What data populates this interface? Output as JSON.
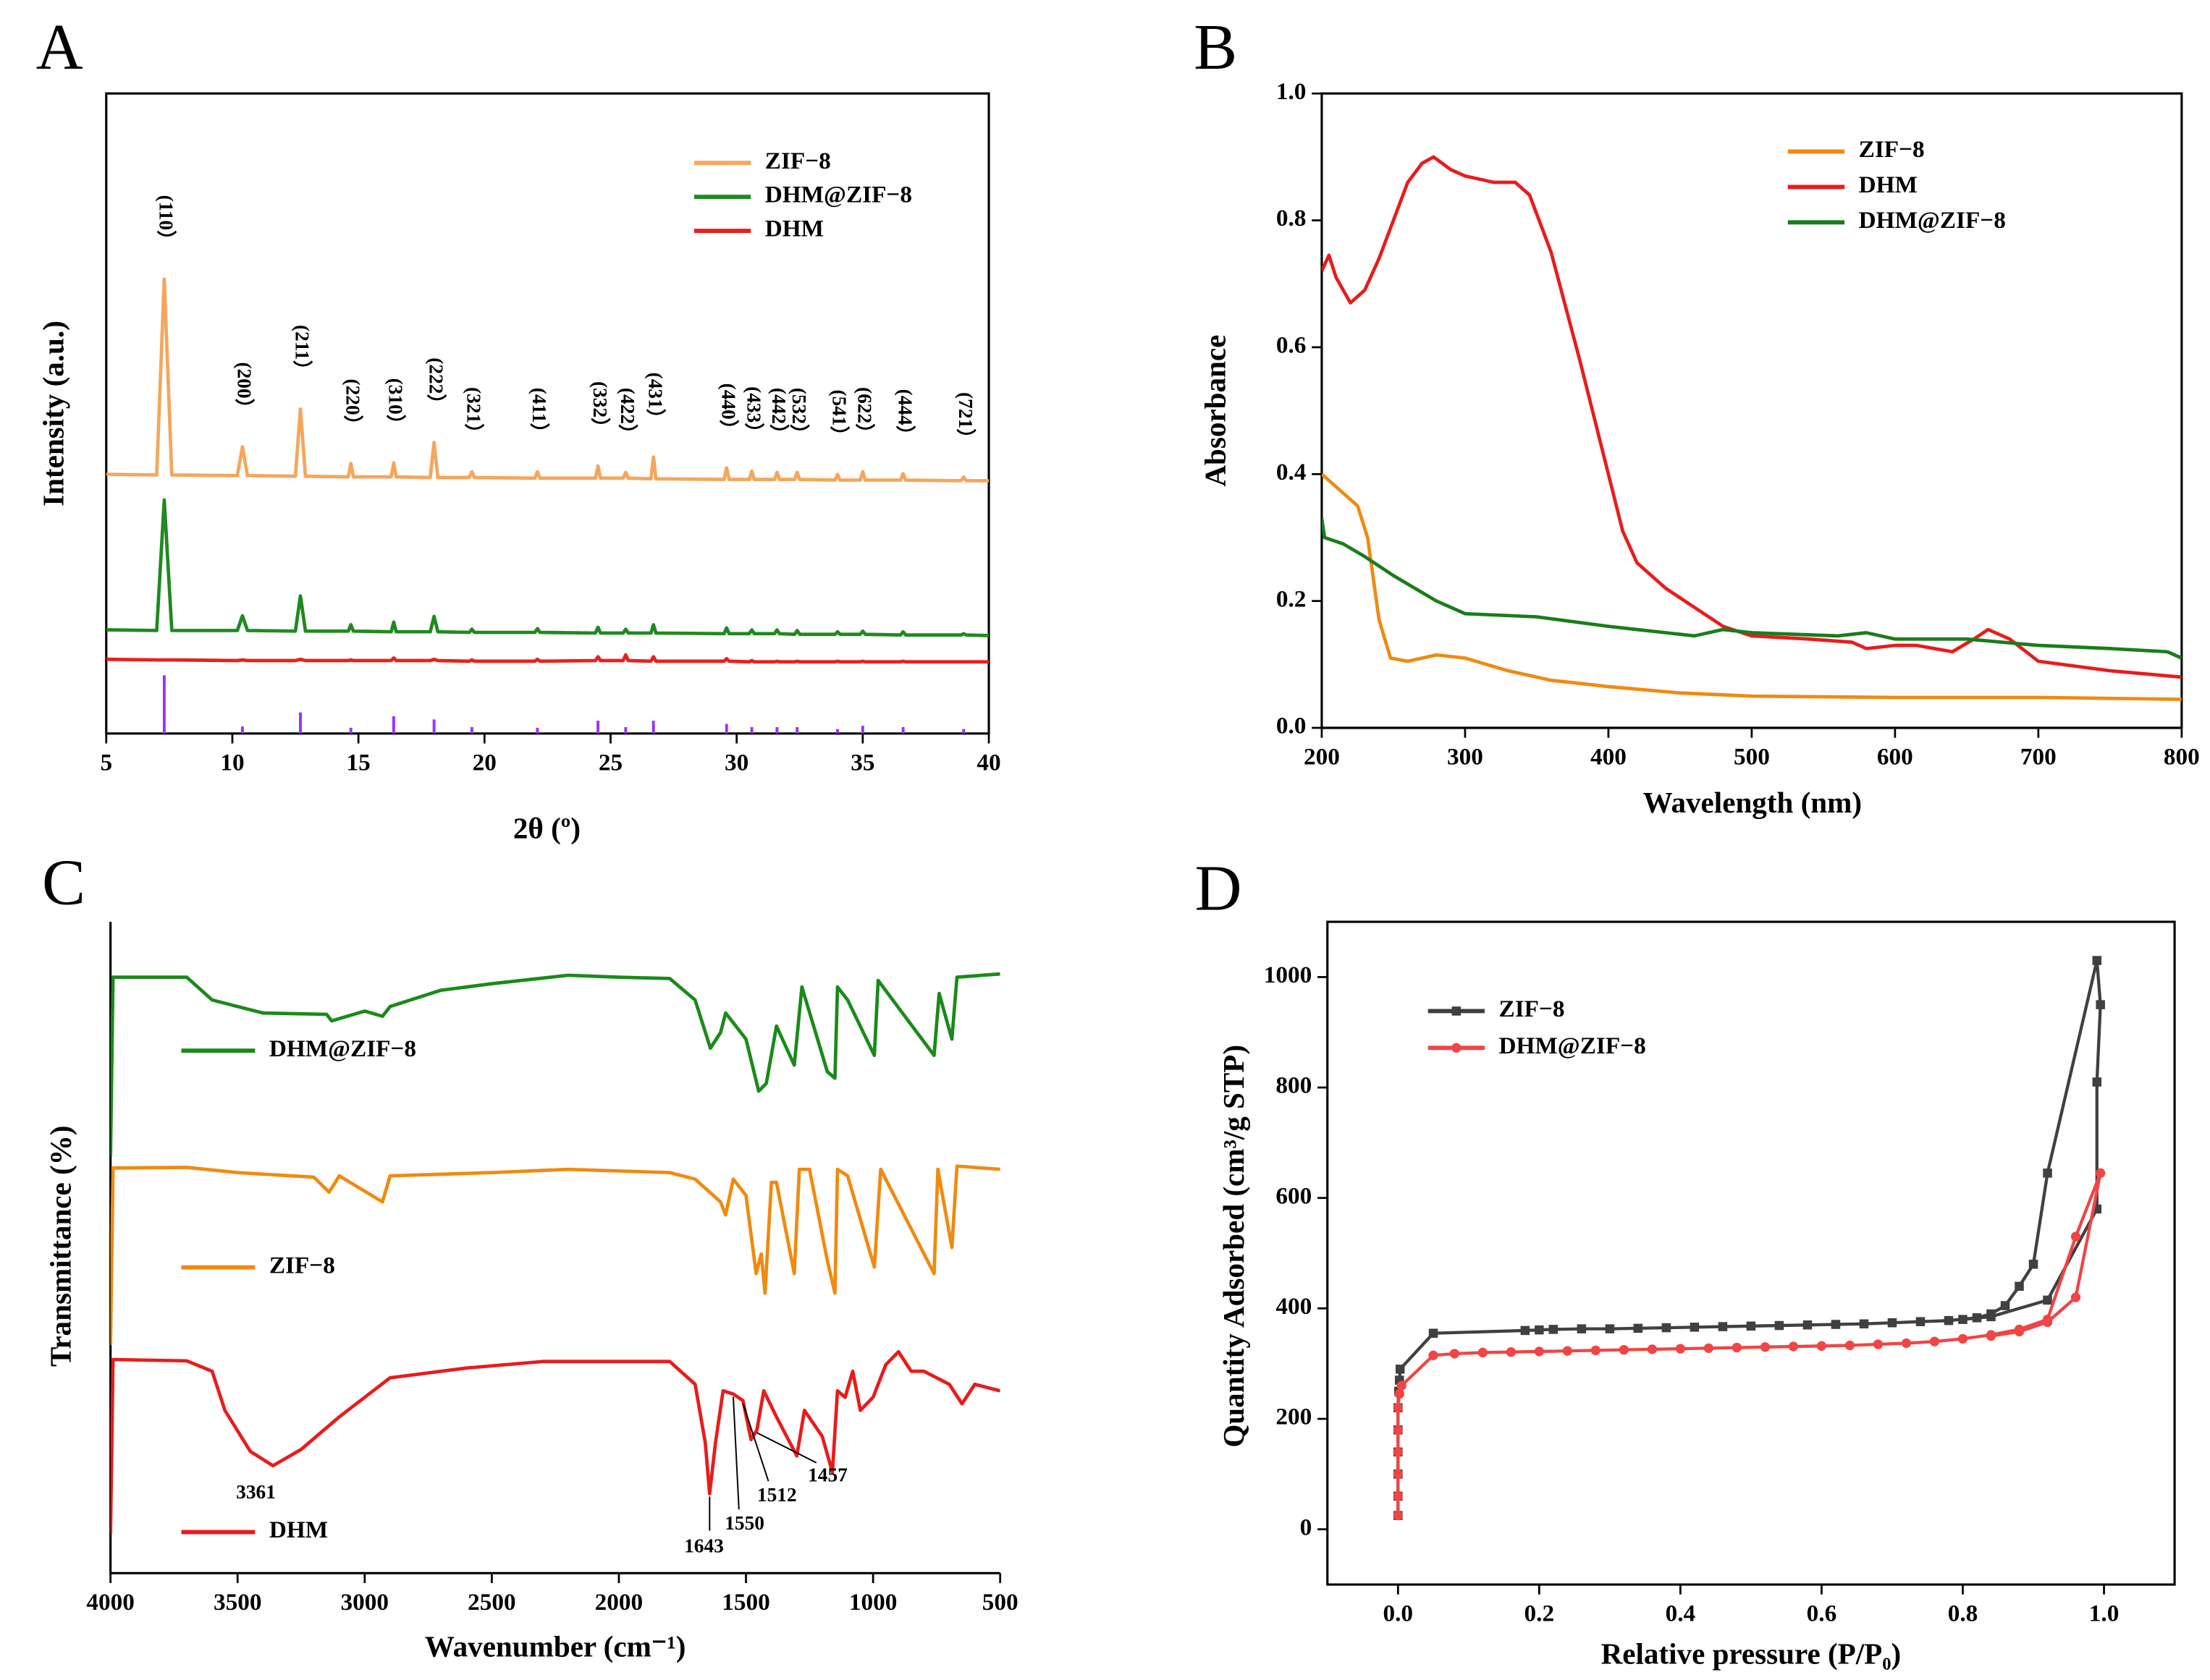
{
  "chart_data": [
    {
      "panel": "A",
      "type": "line",
      "xlabel": "2θ (º)",
      "ylabel": "Intensity (a.u.)",
      "xlim": [
        5,
        40
      ],
      "ylim": [
        0,
        100
      ],
      "xticks": [
        5,
        10,
        15,
        20,
        25,
        30,
        35,
        40
      ],
      "legend": "upper right",
      "x": [
        5,
        7.0,
        7.3,
        7.6,
        10.2,
        10.4,
        10.6,
        12.5,
        12.7,
        12.9,
        14.6,
        14.7,
        14.8,
        16.3,
        16.4,
        16.5,
        17.85,
        18.0,
        18.15,
        19.4,
        19.5,
        19.6,
        22.0,
        22.1,
        22.2,
        24.4,
        24.5,
        24.6,
        25.5,
        25.6,
        25.7,
        26.6,
        26.7,
        26.8,
        29.5,
        29.6,
        29.7,
        30.5,
        30.6,
        30.7,
        31.5,
        31.6,
        31.7,
        32.3,
        32.4,
        32.5,
        33.9,
        34.0,
        34.1,
        34.9,
        35.0,
        35.1,
        36.5,
        36.6,
        36.7,
        38.9,
        39.0,
        39.1,
        40
      ],
      "series": [
        {
          "name": "ZIF−8",
          "color": "#f5a65b",
          "values": [
            40.5,
            40.4,
            71,
            40.4,
            40.3,
            44.8,
            40.3,
            40.2,
            50.7,
            40.2,
            40.1,
            42.2,
            40.1,
            40.1,
            42.3,
            40.1,
            40.0,
            45.5,
            40.0,
            40.0,
            40.9,
            40.0,
            39.9,
            40.9,
            39.9,
            39.9,
            41.8,
            39.9,
            39.9,
            40.8,
            39.9,
            39.8,
            43.2,
            39.8,
            39.7,
            41.5,
            39.7,
            39.7,
            41.0,
            39.7,
            39.7,
            40.8,
            39.7,
            39.7,
            40.8,
            39.7,
            39.6,
            40.5,
            39.6,
            39.6,
            40.9,
            39.6,
            39.6,
            40.6,
            39.6,
            39.5,
            40.1,
            39.5,
            39.5
          ]
        },
        {
          "name": "DHM@ZIF−8",
          "color": "#1f8a1f",
          "values": [
            16.2,
            16.1,
            36.5,
            16.1,
            16.1,
            18.4,
            16.1,
            16.0,
            21.5,
            16.0,
            16.0,
            17.0,
            16.0,
            15.9,
            17.4,
            15.9,
            15.9,
            18.3,
            15.9,
            15.8,
            16.3,
            15.8,
            15.8,
            16.4,
            15.8,
            15.7,
            16.6,
            15.7,
            15.7,
            16.3,
            15.7,
            15.7,
            17.0,
            15.7,
            15.6,
            16.5,
            15.6,
            15.6,
            16.2,
            15.6,
            15.6,
            16.2,
            15.6,
            15.5,
            16.1,
            15.5,
            15.5,
            15.9,
            15.5,
            15.5,
            16.0,
            15.5,
            15.4,
            15.9,
            15.4,
            15.4,
            15.6,
            15.4,
            15.3
          ]
        },
        {
          "name": "DHM",
          "color": "#e8201e",
          "values": [
            11.6,
            11.5,
            11.5,
            11.5,
            11.4,
            11.5,
            11.4,
            11.4,
            11.6,
            11.4,
            11.4,
            11.5,
            11.4,
            11.4,
            11.8,
            11.4,
            11.4,
            11.6,
            11.4,
            11.3,
            11.5,
            11.3,
            11.3,
            11.6,
            11.3,
            11.4,
            12.0,
            11.4,
            11.4,
            12.3,
            11.4,
            11.3,
            12.0,
            11.3,
            11.3,
            11.7,
            11.3,
            11.2,
            11.4,
            11.2,
            11.2,
            11.3,
            11.2,
            11.2,
            11.3,
            11.2,
            11.2,
            11.3,
            11.2,
            11.2,
            11.3,
            11.2,
            11.2,
            11.3,
            11.2,
            11.2,
            11.2,
            11.2,
            11.2
          ]
        }
      ],
      "reference": {
        "color": "#9b30ff",
        "x": [
          7.3,
          10.4,
          12.7,
          14.7,
          16.4,
          18.0,
          19.5,
          22.1,
          24.5,
          25.6,
          26.7,
          29.6,
          30.6,
          31.6,
          32.4,
          34.0,
          35.0,
          36.6,
          39.0
        ],
        "values": [
          9.1,
          1.1,
          3.3,
          0.9,
          2.7,
          2.2,
          1.0,
          0.9,
          2.0,
          1.0,
          2.0,
          1.5,
          1.0,
          1.0,
          1.0,
          0.7,
          1.2,
          1.0,
          0.7
        ]
      },
      "peak_labels": [
        {
          "label": "(110）",
          "x": 7.3
        },
        {
          "label": "(200）",
          "x": 10.4
        },
        {
          "label": "(211）",
          "x": 12.7
        },
        {
          "label": "(220）",
          "x": 14.7
        },
        {
          "label": "(310）",
          "x": 16.4
        },
        {
          "label": "(222）",
          "x": 18.0
        },
        {
          "label": "(321）",
          "x": 19.5
        },
        {
          "label": "(411）",
          "x": 22.1
        },
        {
          "label": "(332）",
          "x": 24.5
        },
        {
          "label": "(422）",
          "x": 25.6
        },
        {
          "label": "(431）",
          "x": 26.7
        },
        {
          "label": "(440）",
          "x": 29.6
        },
        {
          "label": "(433）",
          "x": 30.6
        },
        {
          "label": "(442）",
          "x": 31.6
        },
        {
          "label": "(532）",
          "x": 32.4
        },
        {
          "label": "(541）",
          "x": 34.0
        },
        {
          "label": "(622）",
          "x": 35.0
        },
        {
          "label": "(444）",
          "x": 36.6
        },
        {
          "label": "(721）",
          "x": 39.0
        }
      ]
    },
    {
      "panel": "B",
      "type": "line",
      "xlabel": "Wavelength (nm)",
      "ylabel": "Absorbance",
      "xlim": [
        200,
        800
      ],
      "ylim": [
        0,
        1
      ],
      "xticks": [
        200,
        300,
        400,
        500,
        600,
        700,
        800
      ],
      "yticks": [
        {
          "value": 0,
          "label": "0.0"
        },
        0.2,
        0.4,
        0.6,
        0.8,
        {
          "value": 1,
          "label": "1.0"
        }
      ],
      "legend": "upper right",
      "series": [
        {
          "name": "ZIF−8",
          "color": "#f08a10",
          "x": [
            200,
            210,
            225,
            232,
            240,
            248,
            260,
            280,
            300,
            330,
            360,
            400,
            450,
            500,
            600,
            700,
            800
          ],
          "values": [
            0.4,
            0.38,
            0.35,
            0.3,
            0.17,
            0.11,
            0.105,
            0.115,
            0.11,
            0.09,
            0.075,
            0.065,
            0.055,
            0.05,
            0.048,
            0.048,
            0.045
          ]
        },
        {
          "name": "DHM",
          "color": "#e81c1c",
          "x": [
            200,
            205,
            210,
            220,
            230,
            240,
            250,
            260,
            270,
            278,
            290,
            300,
            320,
            335,
            345,
            360,
            380,
            400,
            410,
            420,
            440,
            460,
            480,
            500,
            540,
            570,
            580,
            600,
            615,
            640,
            655,
            665,
            680,
            700,
            750,
            800
          ],
          "values": [
            0.72,
            0.745,
            0.71,
            0.67,
            0.69,
            0.74,
            0.8,
            0.86,
            0.89,
            0.9,
            0.88,
            0.87,
            0.86,
            0.86,
            0.84,
            0.75,
            0.58,
            0.4,
            0.31,
            0.26,
            0.22,
            0.19,
            0.16,
            0.145,
            0.14,
            0.135,
            0.125,
            0.13,
            0.13,
            0.12,
            0.14,
            0.155,
            0.14,
            0.105,
            0.09,
            0.08
          ]
        },
        {
          "name": "DHM@ZIF−8",
          "color": "#1a7d1a",
          "x": [
            200,
            202,
            215,
            230,
            250,
            280,
            300,
            350,
            400,
            420,
            460,
            480,
            500,
            560,
            580,
            600,
            650,
            700,
            750,
            790,
            800
          ],
          "values": [
            0.33,
            0.3,
            0.29,
            0.27,
            0.24,
            0.2,
            0.18,
            0.175,
            0.16,
            0.155,
            0.145,
            0.155,
            0.15,
            0.145,
            0.15,
            0.14,
            0.14,
            0.13,
            0.125,
            0.12,
            0.11
          ]
        }
      ]
    },
    {
      "panel": "C",
      "type": "line",
      "xlabel": "Wavenumber (cm⁻¹)",
      "ylabel": "Transmittance (%)",
      "xlim": [
        4000,
        500
      ],
      "ylim": [
        0,
        100
      ],
      "xticks": [
        4000,
        3500,
        3000,
        2500,
        2000,
        1500,
        1000,
        500
      ],
      "legend": "beside",
      "series": [
        {
          "name": "DHM@ZIF−8",
          "color": "#1a8a1a",
          "x": [
            4000,
            3990,
            3700,
            3600,
            3400,
            3150,
            3130,
            3000,
            2930,
            2900,
            2700,
            2500,
            2200,
            2000,
            1800,
            1700,
            1640,
            1600,
            1580,
            1500,
            1450,
            1420,
            1380,
            1310,
            1280,
            1180,
            1150,
            1140,
            1100,
            995,
            980,
            760,
            740,
            690,
            670,
            500
          ],
          "values": [
            64,
            91.5,
            91.5,
            88,
            86,
            85.8,
            84.8,
            86.3,
            85.5,
            87,
            89.5,
            90.5,
            91.8,
            91.5,
            91.3,
            88,
            80.6,
            83,
            86,
            82,
            74,
            75.2,
            84,
            78,
            90,
            77,
            76,
            90,
            88,
            79.5,
            91,
            79.5,
            89,
            82,
            91.5,
            92
          ]
        },
        {
          "name": "ZIF−8",
          "color": "#f08a10",
          "x": [
            4000,
            3990,
            3700,
            3500,
            3200,
            3140,
            3100,
            2930,
            2900,
            2500,
            2200,
            1800,
            1700,
            1600,
            1580,
            1550,
            1500,
            1460,
            1440,
            1425,
            1400,
            1380,
            1310,
            1290,
            1250,
            1180,
            1150,
            1140,
            1100,
            995,
            970,
            760,
            745,
            690,
            670,
            500
          ],
          "values": [
            35,
            62.2,
            62.3,
            61.5,
            60.8,
            58.5,
            61,
            57,
            61,
            61.5,
            62,
            61.5,
            60.5,
            57,
            55,
            60.5,
            58,
            46,
            49,
            43,
            60,
            60,
            46,
            62,
            62,
            48,
            43,
            62,
            61,
            47,
            62,
            46,
            62,
            50,
            62.5,
            62
          ]
        },
        {
          "name": "DHM",
          "color": "#e81c1c",
          "x": [
            4000,
            3990,
            3700,
            3600,
            3550,
            3450,
            3361,
            3250,
            3100,
            2900,
            2600,
            2300,
            1800,
            1700,
            1660,
            1643,
            1620,
            1590,
            1550,
            1512,
            1480,
            1457,
            1430,
            1380,
            1300,
            1270,
            1200,
            1160,
            1140,
            1110,
            1080,
            1050,
            1000,
            950,
            900,
            850,
            800,
            700,
            650,
            600,
            500
          ],
          "values": [
            6,
            32.8,
            32.6,
            31,
            25,
            18.7,
            16.5,
            19,
            24,
            30,
            31.5,
            32.5,
            32.5,
            29,
            20,
            12.2,
            20,
            28,
            27.5,
            26.5,
            20.5,
            22,
            28,
            24,
            18,
            25,
            21,
            15.5,
            28,
            27,
            31,
            25,
            27,
            32,
            34,
            31,
            31,
            29,
            26,
            29,
            28
          ]
        }
      ],
      "peak_labels": [
        {
          "label": "3361",
          "x": 3361
        },
        {
          "label": "1643",
          "x": 1643
        },
        {
          "label": "1550",
          "x": 1550
        },
        {
          "label": "1512",
          "x": 1512
        },
        {
          "label": "1457",
          "x": 1457
        }
      ]
    },
    {
      "panel": "D",
      "type": "line",
      "xlabel": "Relative pressure (P/P₀)",
      "ylabel": "Quantity Adsorbed (cm³/g STP)",
      "xlim": [
        -0.1,
        1.1
      ],
      "ylim": [
        -100,
        1100
      ],
      "xticks": [
        {
          "value": 0,
          "label": "0.0"
        },
        0.2,
        0.4,
        0.6,
        0.8,
        {
          "value": 1,
          "label": "1.0"
        }
      ],
      "yticks": [
        0,
        200,
        400,
        600,
        800,
        1000
      ],
      "legend": "upper left",
      "series": [
        {
          "name": "ZIF−8",
          "color": "#404040",
          "marker": "square",
          "x": [
            0,
            0,
            0,
            0,
            0,
            0,
            0.001,
            0.002,
            0.003,
            0.05,
            0.18,
            0.2,
            0.22,
            0.26,
            0.3,
            0.34,
            0.38,
            0.42,
            0.46,
            0.5,
            0.54,
            0.58,
            0.62,
            0.66,
            0.7,
            0.74,
            0.78,
            0.82,
            0.84,
            0.86,
            0.88,
            0.9,
            0.92,
            0.99,
            0.995,
            0.99,
            0.99,
            0.92,
            0.84,
            0.8
          ],
          "values": [
            25,
            60,
            100,
            140,
            180,
            220,
            250,
            270,
            290,
            355,
            360,
            361,
            362,
            363,
            363,
            364,
            365,
            366,
            367,
            368,
            369,
            370,
            371,
            372,
            374,
            376,
            378,
            383,
            390,
            405,
            440,
            480,
            645,
            1030,
            950,
            810,
            580,
            415,
            385,
            380
          ]
        },
        {
          "name": "DHM@ZIF−8",
          "color": "#f04545",
          "marker": "circle",
          "x": [
            0,
            0,
            0,
            0,
            0,
            0,
            0.002,
            0.005,
            0.05,
            0.08,
            0.12,
            0.16,
            0.2,
            0.24,
            0.28,
            0.32,
            0.36,
            0.4,
            0.44,
            0.48,
            0.52,
            0.56,
            0.6,
            0.64,
            0.68,
            0.72,
            0.76,
            0.8,
            0.84,
            0.88,
            0.92,
            0.96,
            0.995,
            0.96,
            0.92,
            0.88,
            0.84
          ],
          "values": [
            25,
            60,
            100,
            140,
            180,
            220,
            245,
            260,
            315,
            318,
            320,
            321,
            322,
            323,
            324,
            325,
            326,
            327,
            328,
            329,
            330,
            331,
            332,
            333,
            335,
            337,
            340,
            345,
            352,
            362,
            380,
            530,
            645,
            420,
            375,
            358,
            350
          ]
        }
      ]
    }
  ]
}
